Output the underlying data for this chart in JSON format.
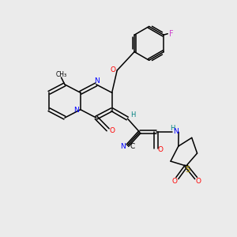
{
  "background_color": "#ebebeb",
  "fig_width": 3.0,
  "fig_height": 3.0,
  "dpi": 100,
  "xlim": [
    0,
    10
  ],
  "ylim": [
    0,
    10
  ],
  "black": "#000000",
  "red": "#ff0000",
  "blue": "#0000ff",
  "teal": "#008080",
  "magenta": "#cc44cc",
  "gold": "#b8a000",
  "lw": 1.1,
  "fontsize": 6.5
}
